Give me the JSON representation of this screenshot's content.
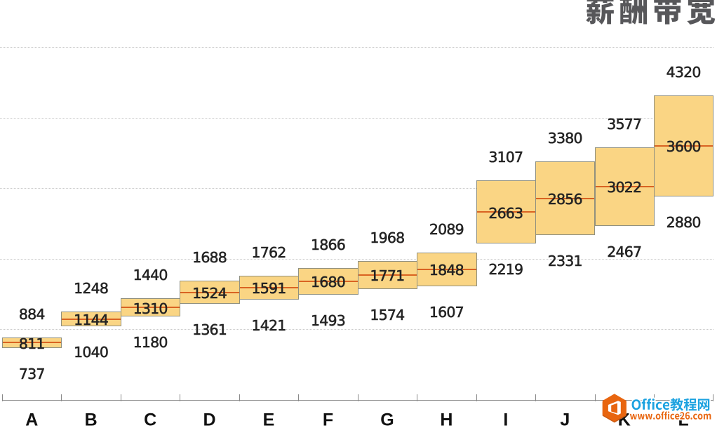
{
  "title": {
    "text": "薪酬带宽",
    "color": "#57575a"
  },
  "watermark": {
    "brand": "Office教程网",
    "url": "www.office26.com",
    "aria": "Office教程网 www.office26.com",
    "brand_color": "#1ca2e0",
    "url_color": "#e8650f",
    "logo_icon": "office-hexagon-icon"
  },
  "chart_data": {
    "type": "bar",
    "subtype": "floating-range-bar (salary band: min-max box with mid line)",
    "title": "薪酬带宽",
    "categories": [
      "A",
      "B",
      "C",
      "D",
      "E",
      "F",
      "G",
      "H",
      "I",
      "J",
      "K",
      "L"
    ],
    "series": [
      {
        "name": "max",
        "role": "band-top",
        "values": [
          884,
          1248,
          1440,
          1688,
          1762,
          1866,
          1968,
          2089,
          3107,
          3380,
          3577,
          4320
        ]
      },
      {
        "name": "mid",
        "role": "mid-line",
        "values": [
          811,
          1144,
          1310,
          1524,
          1591,
          1680,
          1771,
          1848,
          2663,
          2856,
          3022,
          3600
        ]
      },
      {
        "name": "min",
        "role": "band-bottom",
        "values": [
          737,
          1040,
          1180,
          1361,
          1421,
          1493,
          1574,
          1607,
          2219,
          2331,
          2467,
          2880
        ]
      }
    ],
    "xlabel": "",
    "ylabel": "",
    "ylim": [
      0,
      5000
    ],
    "gridline_step": 1000,
    "grid": "horizontal-dotted",
    "legend": "none",
    "labels": "max above bar, mid centered in bar, min below bar"
  },
  "style": {
    "bar_fill": "#fad584",
    "bar_border": "#90907f",
    "mid_line_color": "#d96322",
    "label_color": "#242424",
    "category_color": "#111111",
    "gridline_color": "#c9c9c9",
    "axis_color": "#898989",
    "background": "#ffffff"
  }
}
